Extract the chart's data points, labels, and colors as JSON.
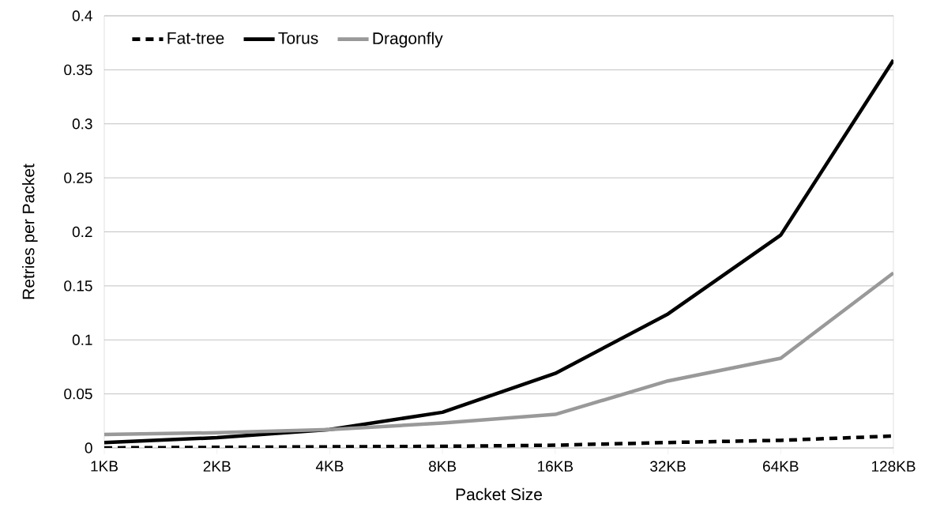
{
  "chart_data": {
    "type": "line",
    "xlabel": "Packet Size",
    "ylabel": "Retries per Packet",
    "categories": [
      "1KB",
      "2KB",
      "4KB",
      "8KB",
      "16KB",
      "32KB",
      "64KB",
      "128KB"
    ],
    "series": [
      {
        "name": "Fat-tree",
        "color": "#000000",
        "line_style": "dashed",
        "values": [
          0.0,
          0.0005,
          0.001,
          0.0015,
          0.0025,
          0.005,
          0.007,
          0.011
        ]
      },
      {
        "name": "Torus",
        "color": "#000000",
        "line_style": "solid",
        "values": [
          0.005,
          0.0095,
          0.017,
          0.033,
          0.069,
          0.124,
          0.197,
          0.359
        ]
      },
      {
        "name": "Dragonfly",
        "color": "#999999",
        "line_style": "solid",
        "values": [
          0.0125,
          0.014,
          0.017,
          0.023,
          0.031,
          0.062,
          0.083,
          0.162
        ]
      }
    ],
    "ylim": [
      0,
      0.4
    ],
    "yticks": [
      0,
      0.05,
      0.1,
      0.15,
      0.2,
      0.25,
      0.3,
      0.35,
      0.4
    ],
    "grid": "y",
    "legend": "top left",
    "marker": "none"
  }
}
